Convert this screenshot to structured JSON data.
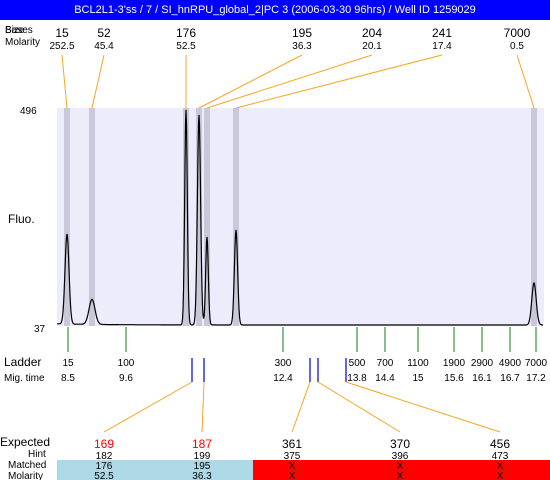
{
  "title": "BCL2L1-3'ss / 7 / SI_hnRPU_global_2|PC 3 (2006-03-30 96hrs) / Well ID 1259029",
  "header": {
    "size_label": "Size",
    "bases_label": "Bases",
    "molarity_label": "Molarity"
  },
  "y_axis": {
    "label": "Fluo.",
    "max": "496",
    "min": "37"
  },
  "peaks": [
    {
      "size": "15",
      "molarity": "252.5"
    },
    {
      "size": "52",
      "molarity": "45.4"
    },
    {
      "size": "176",
      "molarity": "52.5"
    },
    {
      "size": "195",
      "molarity": "36.3"
    },
    {
      "size": "204",
      "molarity": "20.1"
    },
    {
      "size": "241",
      "molarity": "17.4"
    },
    {
      "size": "7000",
      "molarity": "0.5"
    }
  ],
  "ladder": {
    "label": "Ladder",
    "migtime_label": "Mig. time",
    "marks": [
      {
        "size": "15",
        "time": "8.5"
      },
      {
        "size": "100",
        "time": "9.6"
      },
      {
        "size": "300",
        "time": "12.4"
      },
      {
        "size": "500",
        "time": "13.8"
      },
      {
        "size": "700",
        "time": "14.4"
      },
      {
        "size": "1100",
        "time": "15"
      },
      {
        "size": "1900",
        "time": "15.6"
      },
      {
        "size": "2900",
        "time": "16.1"
      },
      {
        "size": "4900",
        "time": "16.7"
      },
      {
        "size": "7000",
        "time": "17.2"
      }
    ]
  },
  "expected": {
    "expected_label": "Expected",
    "hint_label": "Hint",
    "matched_label": "Matched",
    "molarity_label": "Molarity",
    "items": [
      {
        "expected": "169",
        "hint": "182",
        "matched": "176",
        "molarity": "52.5",
        "status": "matched"
      },
      {
        "expected": "187",
        "hint": "199",
        "matched": "195",
        "molarity": "36.3",
        "status": "matched"
      },
      {
        "expected": "361",
        "hint": "375",
        "matched": "X",
        "molarity": "X",
        "status": "missing"
      },
      {
        "expected": "370",
        "hint": "396",
        "matched": "X",
        "molarity": "X",
        "status": "missing"
      },
      {
        "expected": "456",
        "hint": "473",
        "matched": "X",
        "molarity": "X",
        "status": "missing"
      }
    ]
  },
  "colors": {
    "title_bg": "#0000ff",
    "plot_bg": "#ececfb",
    "peak_band": "#c8c8d8",
    "connector": "#f5a623",
    "ladder_tick": "#1a7a1a",
    "expected_red": "#ff0000",
    "matched_bg": "#add8e6",
    "missing_bg": "#ff0000",
    "marker_blue": "#0000cc"
  }
}
